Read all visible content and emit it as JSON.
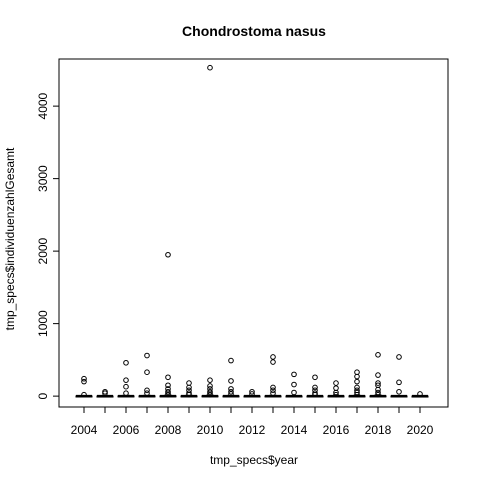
{
  "chart_data": {
    "type": "box",
    "title": "Chondrostoma nasus",
    "xlabel": "tmp_specs$year",
    "ylabel": "tmp_specs$individuenzahlGesamt",
    "categories": [
      "2004",
      "2005",
      "2006",
      "2007",
      "2008",
      "2009",
      "2010",
      "2011",
      "2012",
      "2013",
      "2014",
      "2015",
      "2016",
      "2017",
      "2018",
      "2019",
      "2020"
    ],
    "x_tick_labels": [
      "2004",
      "2006",
      "2008",
      "2010",
      "2012",
      "2014",
      "2016",
      "2018",
      "2020"
    ],
    "y_ticks": [
      0,
      1000,
      2000,
      3000,
      4000
    ],
    "y_tick_labels": [
      "0",
      "1000",
      "2000",
      "3000",
      "4000"
    ],
    "ylim": [
      -150,
      4650
    ],
    "boxes": [
      {
        "year": "2004",
        "q1": 0,
        "median": 0,
        "q3": 2,
        "whisker_low": 0,
        "whisker_high": 6,
        "outliers": [
          20,
          200,
          240
        ]
      },
      {
        "year": "2005",
        "q1": 0,
        "median": 0,
        "q3": 1,
        "whisker_low": 0,
        "whisker_high": 4,
        "outliers": [
          40,
          60
        ]
      },
      {
        "year": "2006",
        "q1": 0,
        "median": 0,
        "q3": 3,
        "whisker_low": 0,
        "whisker_high": 10,
        "outliers": [
          40,
          130,
          220,
          460
        ]
      },
      {
        "year": "2007",
        "q1": 0,
        "median": 0,
        "q3": 3,
        "whisker_low": 0,
        "whisker_high": 10,
        "outliers": [
          40,
          80,
          330,
          560
        ]
      },
      {
        "year": "2008",
        "q1": 0,
        "median": 0,
        "q3": 4,
        "whisker_low": 0,
        "whisker_high": 12,
        "outliers": [
          20,
          40,
          60,
          100,
          150,
          260,
          1950
        ]
      },
      {
        "year": "2009",
        "q1": 0,
        "median": 0,
        "q3": 3,
        "whisker_low": 0,
        "whisker_high": 10,
        "outliers": [
          20,
          40,
          80,
          120,
          180
        ]
      },
      {
        "year": "2010",
        "q1": 0,
        "median": 0,
        "q3": 4,
        "whisker_low": 0,
        "whisker_high": 12,
        "outliers": [
          20,
          40,
          60,
          100,
          140,
          220,
          4530
        ]
      },
      {
        "year": "2011",
        "q1": 0,
        "median": 0,
        "q3": 3,
        "whisker_low": 0,
        "whisker_high": 10,
        "outliers": [
          30,
          60,
          100,
          210,
          490
        ]
      },
      {
        "year": "2012",
        "q1": 0,
        "median": 0,
        "q3": 2,
        "whisker_low": 0,
        "whisker_high": 6,
        "outliers": [
          30,
          60
        ]
      },
      {
        "year": "2013",
        "q1": 0,
        "median": 0,
        "q3": 3,
        "whisker_low": 0,
        "whisker_high": 10,
        "outliers": [
          40,
          80,
          120,
          470,
          540
        ]
      },
      {
        "year": "2014",
        "q1": 0,
        "median": 0,
        "q3": 2,
        "whisker_low": 0,
        "whisker_high": 6,
        "outliers": [
          50,
          160,
          300
        ]
      },
      {
        "year": "2015",
        "q1": 0,
        "median": 0,
        "q3": 2,
        "whisker_low": 0,
        "whisker_high": 8,
        "outliers": [
          20,
          40,
          80,
          120,
          260
        ]
      },
      {
        "year": "2016",
        "q1": 0,
        "median": 0,
        "q3": 3,
        "whisker_low": 0,
        "whisker_high": 8,
        "outliers": [
          20,
          50,
          110,
          180
        ]
      },
      {
        "year": "2017",
        "q1": 0,
        "median": 0,
        "q3": 3,
        "whisker_low": 0,
        "whisker_high": 10,
        "outliers": [
          20,
          50,
          80,
          120,
          200,
          270,
          330
        ]
      },
      {
        "year": "2018",
        "q1": 0,
        "median": 0,
        "q3": 4,
        "whisker_low": 0,
        "whisker_high": 12,
        "outliers": [
          20,
          50,
          90,
          150,
          180,
          290,
          570
        ]
      },
      {
        "year": "2019",
        "q1": 0,
        "median": 0,
        "q3": 2,
        "whisker_low": 0,
        "whisker_high": 6,
        "outliers": [
          60,
          190,
          540
        ]
      },
      {
        "year": "2020",
        "q1": 0,
        "median": 0,
        "q3": 1,
        "whisker_low": 0,
        "whisker_high": 4,
        "outliers": [
          30
        ]
      }
    ],
    "grid": false,
    "colors": {
      "box_fill": "#ffffff",
      "stroke": "#000000",
      "background": "#ffffff"
    }
  }
}
